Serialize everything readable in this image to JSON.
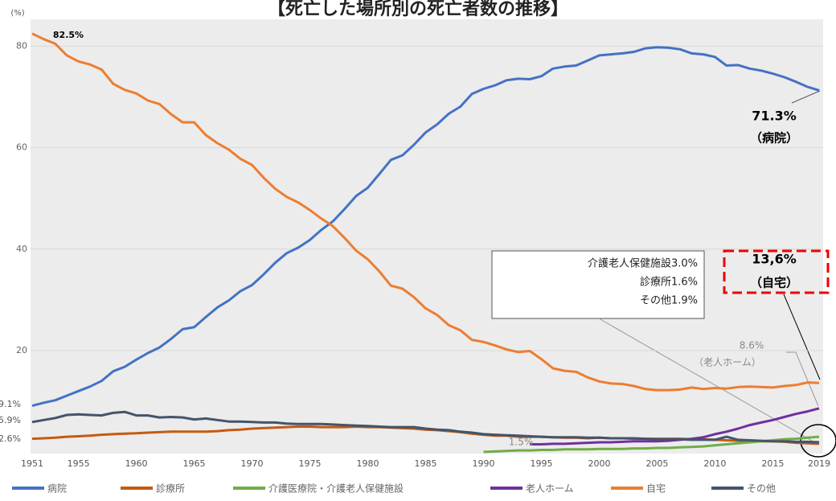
{
  "chart_data": {
    "type": "line",
    "title": "【死亡した場所別の死亡者数の推移】",
    "x": [
      1951,
      1952,
      1953,
      1954,
      1955,
      1956,
      1957,
      1958,
      1959,
      1960,
      1961,
      1962,
      1963,
      1964,
      1965,
      1966,
      1967,
      1968,
      1969,
      1970,
      1971,
      1972,
      1973,
      1974,
      1975,
      1976,
      1977,
      1978,
      1979,
      1980,
      1981,
      1982,
      1983,
      1984,
      1985,
      1986,
      1987,
      1988,
      1989,
      1990,
      1991,
      1992,
      1993,
      1994,
      1995,
      1996,
      1997,
      1998,
      1999,
      2000,
      2001,
      2002,
      2003,
      2004,
      2005,
      2006,
      2007,
      2008,
      2009,
      2010,
      2011,
      2012,
      2013,
      2014,
      2015,
      2016,
      2017,
      2018,
      2019
    ],
    "xlim": [
      1951,
      2019
    ],
    "xticks": [
      1951,
      1955,
      1960,
      1965,
      1970,
      1975,
      1980,
      1985,
      1990,
      1995,
      2000,
      2005,
      2010,
      2015,
      2019
    ],
    "ylim": [
      0,
      85
    ],
    "yticks": [
      20,
      40,
      60,
      80
    ],
    "grid": true,
    "legend": "bottom",
    "series": [
      {
        "name": "病院",
        "color": "#4472c4",
        "values": [
          9.1,
          9.7,
          10.2,
          11.1,
          12.0,
          12.9,
          14.0,
          15.9,
          16.8,
          18.2,
          19.5,
          20.6,
          22.3,
          24.2,
          24.6,
          26.6,
          28.5,
          29.9,
          31.7,
          32.9,
          35.0,
          37.3,
          39.2,
          40.3,
          41.8,
          43.8,
          45.5,
          47.9,
          50.5,
          52.1,
          54.8,
          57.6,
          58.5,
          60.6,
          63.0,
          64.6,
          66.7,
          68.1,
          70.6,
          71.6,
          72.3,
          73.3,
          73.6,
          73.5,
          74.1,
          75.6,
          76.0,
          76.2,
          77.2,
          78.2,
          78.4,
          78.6,
          78.9,
          79.6,
          79.8,
          79.7,
          79.4,
          78.6,
          78.4,
          77.9,
          76.2,
          76.3,
          75.6,
          75.2,
          74.6,
          73.9,
          73.0,
          72.0,
          71.3
        ]
      },
      {
        "name": "診療所",
        "color": "#c55a11",
        "values": [
          2.6,
          2.7,
          2.8,
          3.0,
          3.1,
          3.2,
          3.4,
          3.5,
          3.6,
          3.7,
          3.8,
          3.9,
          4.0,
          4.0,
          4.0,
          4.0,
          4.1,
          4.3,
          4.4,
          4.6,
          4.7,
          4.8,
          4.9,
          5.0,
          5.0,
          4.9,
          4.9,
          4.9,
          5.0,
          4.9,
          4.9,
          4.8,
          4.7,
          4.6,
          4.4,
          4.3,
          4.1,
          3.9,
          3.6,
          3.4,
          3.2,
          3.2,
          3.0,
          3.0,
          3.0,
          2.9,
          2.8,
          2.8,
          2.7,
          2.8,
          2.7,
          2.7,
          2.6,
          2.6,
          2.6,
          2.6,
          2.6,
          2.5,
          2.5,
          2.4,
          2.3,
          2.2,
          2.2,
          2.1,
          2.1,
          2.0,
          1.8,
          1.7,
          1.6
        ]
      },
      {
        "name": "介護医療院・介護老人保健施設",
        "color": "#70ad47",
        "values": [
          null,
          null,
          null,
          null,
          null,
          null,
          null,
          null,
          null,
          null,
          null,
          null,
          null,
          null,
          null,
          null,
          null,
          null,
          null,
          null,
          null,
          null,
          null,
          null,
          null,
          null,
          null,
          null,
          null,
          null,
          null,
          null,
          null,
          null,
          null,
          null,
          null,
          null,
          null,
          0.0,
          0.1,
          0.2,
          0.3,
          0.3,
          0.4,
          0.4,
          0.5,
          0.5,
          0.5,
          0.6,
          0.6,
          0.6,
          0.7,
          0.7,
          0.8,
          0.8,
          0.9,
          1.0,
          1.1,
          1.3,
          1.5,
          1.7,
          1.9,
          2.1,
          2.3,
          2.5,
          2.6,
          2.8,
          3.0
        ]
      },
      {
        "name": "老人ホーム",
        "color": "#7030a0",
        "values": [
          null,
          null,
          null,
          null,
          null,
          null,
          null,
          null,
          null,
          null,
          null,
          null,
          null,
          null,
          null,
          null,
          null,
          null,
          null,
          null,
          null,
          null,
          null,
          null,
          null,
          null,
          null,
          null,
          null,
          null,
          null,
          null,
          null,
          null,
          null,
          null,
          null,
          null,
          null,
          null,
          null,
          null,
          null,
          1.5,
          1.5,
          1.6,
          1.6,
          1.7,
          1.8,
          1.9,
          1.9,
          2.0,
          2.1,
          2.1,
          2.1,
          2.2,
          2.4,
          2.6,
          2.9,
          3.5,
          4.0,
          4.6,
          5.3,
          5.8,
          6.3,
          6.9,
          7.5,
          8.0,
          8.6
        ]
      },
      {
        "name": "自宅",
        "color": "#ed7d31",
        "values": [
          82.5,
          81.4,
          80.5,
          78.2,
          77.0,
          76.4,
          75.4,
          72.6,
          71.4,
          70.7,
          69.3,
          68.6,
          66.6,
          65.0,
          65.0,
          62.5,
          60.9,
          59.6,
          57.8,
          56.6,
          54.1,
          51.9,
          50.3,
          49.2,
          47.7,
          46.0,
          44.5,
          42.2,
          39.7,
          38.0,
          35.6,
          32.8,
          32.2,
          30.5,
          28.3,
          27.0,
          25.0,
          24.0,
          22.1,
          21.7,
          21.0,
          20.2,
          19.7,
          19.9,
          18.3,
          16.5,
          16.0,
          15.8,
          14.7,
          13.9,
          13.5,
          13.4,
          13.0,
          12.4,
          12.2,
          12.2,
          12.3,
          12.7,
          12.4,
          12.6,
          12.5,
          12.8,
          12.9,
          12.8,
          12.7,
          13.0,
          13.2,
          13.7,
          13.6
        ]
      },
      {
        "name": "その他",
        "color": "#44546a",
        "values": [
          5.9,
          6.3,
          6.7,
          7.3,
          7.4,
          7.3,
          7.2,
          7.7,
          7.9,
          7.2,
          7.2,
          6.8,
          6.9,
          6.8,
          6.4,
          6.6,
          6.3,
          6.0,
          6.0,
          5.9,
          5.8,
          5.8,
          5.6,
          5.5,
          5.5,
          5.5,
          5.4,
          5.3,
          5.2,
          5.1,
          5.0,
          4.9,
          4.9,
          4.9,
          4.6,
          4.4,
          4.3,
          4.0,
          3.8,
          3.5,
          3.4,
          3.3,
          3.2,
          3.1,
          3.0,
          2.9,
          2.9,
          2.9,
          2.8,
          2.8,
          2.7,
          2.7,
          2.7,
          2.6,
          2.5,
          2.5,
          2.5,
          2.4,
          2.4,
          2.4,
          3.0,
          2.4,
          2.3,
          2.2,
          2.1,
          2.1,
          2.0,
          2.0,
          1.9
        ]
      }
    ],
    "annotations": [
      "(%)",
      "82.5%",
      "71.3%",
      "（病院）",
      "13,6%",
      "（自宅）",
      "8.6%",
      "（老人ホーム）",
      "1.5%",
      "介護老人保健施設3.0%",
      "診療所1.6%",
      "その他1.9%",
      "9.1%",
      "5.9%",
      "2.6%"
    ]
  }
}
